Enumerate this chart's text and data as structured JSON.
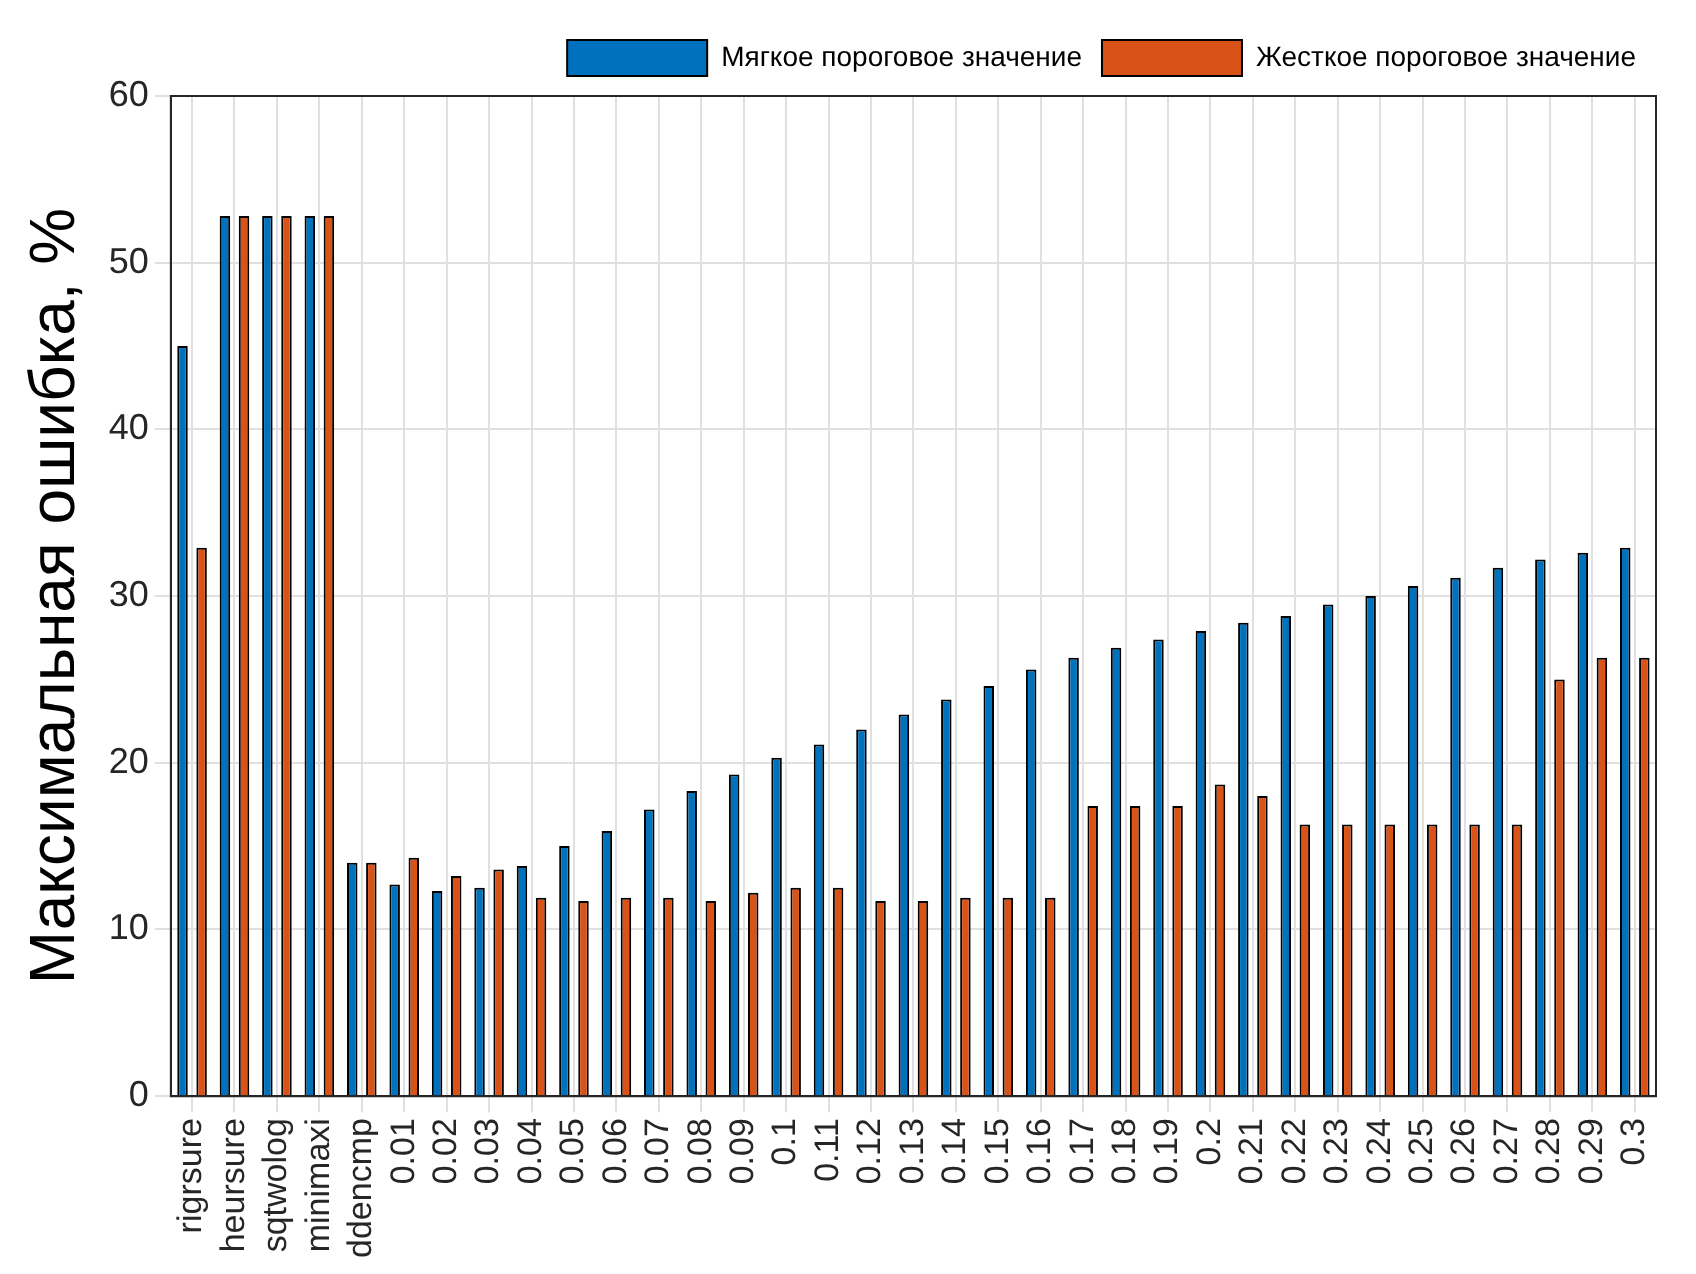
{
  "chart_data": {
    "type": "bar",
    "ylabel": "Максимальная ошибка, %",
    "categories": [
      "rigrsure",
      "heursure",
      "sqtwolog",
      "minimaxi",
      "ddencmp",
      "0.01",
      "0.02",
      "0.03",
      "0.04",
      "0.05",
      "0.06",
      "0.07",
      "0.08",
      "0.09",
      "0.1",
      "0.11",
      "0.12",
      "0.13",
      "0.14",
      "0.15",
      "0.16",
      "0.17",
      "0.18",
      "0.19",
      "0.2",
      "0.21",
      "0.22",
      "0.23",
      "0.24",
      "0.25",
      "0.26",
      "0.27",
      "0.28",
      "0.29",
      "0.3"
    ],
    "series": [
      {
        "name": "Мягкое пороговое значение",
        "color": "#0072bd",
        "values": [
          45,
          52.8,
          52.8,
          52.8,
          14,
          12.7,
          12.3,
          12.5,
          13.8,
          15,
          15.9,
          17.2,
          18.3,
          19.3,
          20.3,
          21.1,
          22,
          22.9,
          23.8,
          24.6,
          25.6,
          26.3,
          26.9,
          27.4,
          27.9,
          28.4,
          28.8,
          29.5,
          30,
          30.6,
          31.1,
          31.7,
          32.2,
          32.6,
          32.9
        ]
      },
      {
        "name": "Жесткое пороговое значение",
        "color": "#d95319",
        "values": [
          32.9,
          52.8,
          52.8,
          52.8,
          14,
          14.3,
          13.2,
          13.6,
          11.9,
          11.7,
          11.9,
          11.9,
          11.7,
          12.2,
          12.5,
          12.5,
          11.7,
          11.7,
          11.9,
          11.9,
          11.9,
          17.4,
          17.4,
          17.4,
          18.7,
          18,
          16.3,
          16.3,
          16.3,
          16.3,
          16.3,
          16.3,
          25,
          26.3,
          26.3
        ]
      }
    ],
    "ylim": [
      0,
      60
    ],
    "yticks": [
      0,
      10,
      20,
      30,
      40,
      50,
      60
    ],
    "grid": true,
    "legend": "top right"
  }
}
